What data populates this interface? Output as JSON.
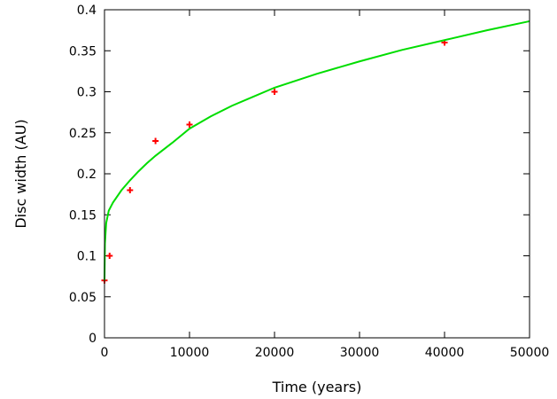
{
  "chart_data": {
    "type": "scatter",
    "title": "",
    "xlabel": "Time (years)",
    "ylabel": "Disc width (AU)",
    "xlim": [
      0,
      50000
    ],
    "ylim": [
      0,
      0.4
    ],
    "x_ticks": [
      "0",
      "10000",
      "20000",
      "30000",
      "40000",
      "50000"
    ],
    "y_ticks": [
      "0",
      "0.05",
      "0.1",
      "0.15",
      "0.2",
      "0.25",
      "0.3",
      "0.35",
      "0.4"
    ],
    "grid": false,
    "legend": "none",
    "series": [
      {
        "kind": "points",
        "marker": "plus",
        "color": "#ff0000",
        "x": [
          0,
          600,
          3000,
          6000,
          10000,
          20000,
          40000
        ],
        "y": [
          0.07,
          0.1,
          0.18,
          0.24,
          0.26,
          0.3,
          0.36
        ]
      },
      {
        "kind": "line",
        "color": "#00dd00",
        "x": [
          0,
          50,
          200,
          500,
          1000,
          2000,
          3000,
          4000,
          5000,
          6000,
          8000,
          10000,
          12500,
          15000,
          17500,
          20000,
          25000,
          30000,
          35000,
          40000,
          45000,
          50000
        ],
        "y": [
          0.07,
          0.115,
          0.14,
          0.155,
          0.165,
          0.18,
          0.192,
          0.203,
          0.213,
          0.222,
          0.238,
          0.255,
          0.27,
          0.283,
          0.294,
          0.305,
          0.322,
          0.337,
          0.351,
          0.363,
          0.375,
          0.386
        ]
      }
    ]
  }
}
